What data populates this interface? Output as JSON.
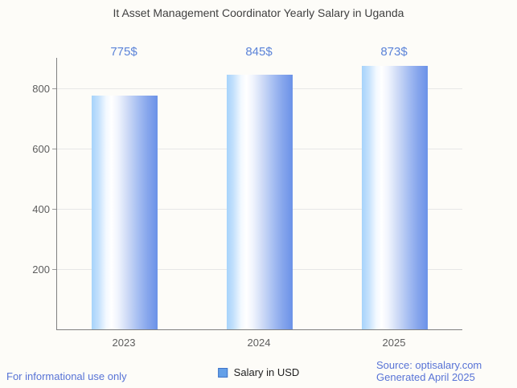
{
  "chart_data": {
    "type": "bar",
    "title": "It Asset Management Coordinator Yearly Salary in Uganda",
    "categories": [
      "2023",
      "2024",
      "2025"
    ],
    "series": [
      {
        "name": "Salary in USD",
        "values": [
          775,
          845,
          873
        ]
      }
    ],
    "annotations": [
      "775$",
      "845$",
      "873$"
    ],
    "xlabel": "",
    "ylabel": "",
    "ylim": [
      0,
      900
    ],
    "yticks": [
      200,
      400,
      600,
      800
    ],
    "grid": true,
    "legend_position": "bottom",
    "colors": {
      "bar_gradient_left": "#a6d3fb",
      "bar_gradient_highlight": "#ffffff",
      "bar_gradient_right": "#6b92e8",
      "annotation": "#5b83d8",
      "axis_line": "#7f7f7f",
      "gridline": "#e7e7e7",
      "tick_text": "#5d5d5d",
      "title_text": "#3f3f3f",
      "legend_swatch_fill": "#64a0e8",
      "legend_swatch_border": "#3f74c8",
      "footer_link": "#5873d6"
    }
  },
  "legend": {
    "label": "Salary in USD"
  },
  "footer": {
    "left": "For informational use only",
    "source": "Source: optisalary.com",
    "generated": "Generated April 2025"
  }
}
